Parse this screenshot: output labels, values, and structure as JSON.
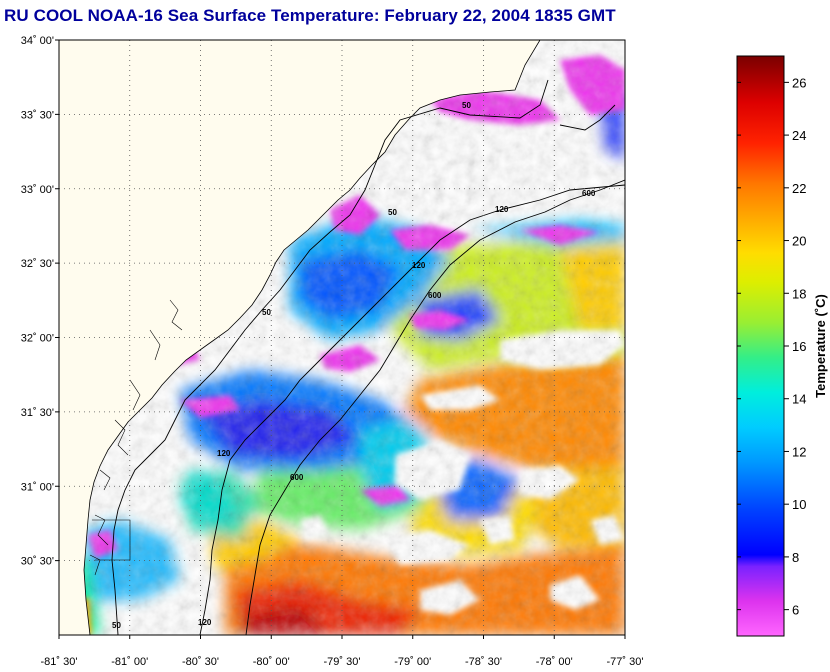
{
  "title": "RU COOL  NOAA-16  Sea Surface Temperature:  February 22, 2004 1835 GMT",
  "map": {
    "lon_ticks": [
      "-81˚ 30'",
      "-81˚ 00'",
      "-80˚ 30'",
      "-80˚ 00'",
      "-79˚ 30'",
      "-79˚ 00'",
      "-78˚ 30'",
      "-78˚ 00'",
      "-77˚ 30'"
    ],
    "lat_ticks": [
      "34˚ 00'",
      "33˚ 30'",
      "33˚ 00'",
      "32˚ 30'",
      "32˚ 00'",
      "31˚ 30'",
      "31˚ 00'",
      "30˚ 30'"
    ],
    "lon_range": [
      -81.5,
      -77.5
    ],
    "lat_range": [
      30.0,
      34.0
    ],
    "contour_labels": [
      "50",
      "120",
      "600"
    ],
    "land_color": "#fffcee",
    "grid": "dotted"
  },
  "colorbar": {
    "label": "Temperature (˚C)",
    "ticks": [
      "6",
      "8",
      "10",
      "12",
      "14",
      "16",
      "18",
      "20",
      "22",
      "24",
      "26"
    ],
    "range": [
      5,
      27
    ]
  }
}
